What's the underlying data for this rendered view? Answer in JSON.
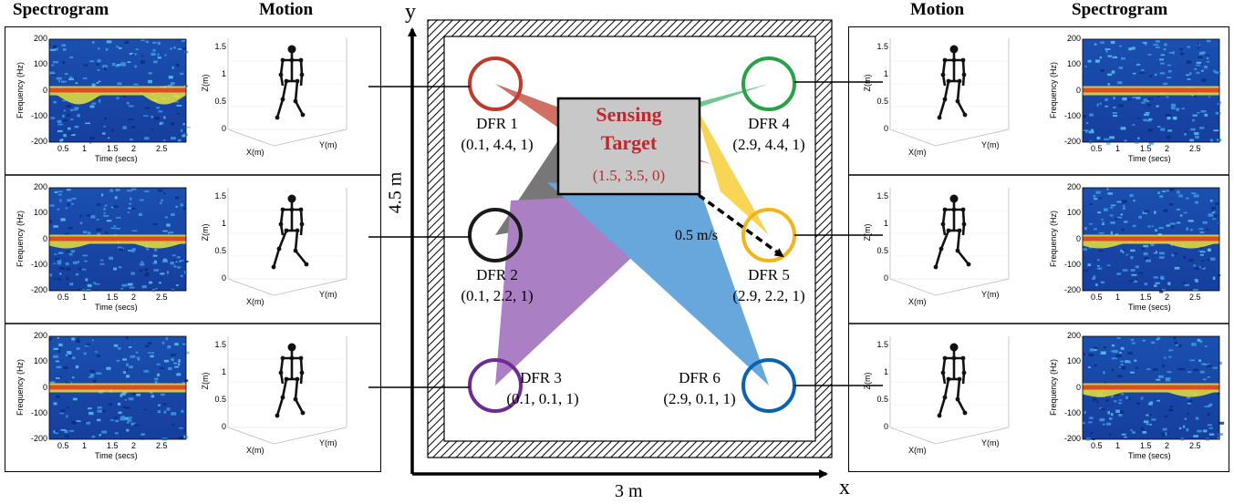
{
  "headers": {
    "left_spectrogram": "Spectrogram",
    "left_motion": "Motion",
    "right_motion": "Motion",
    "right_spectrogram": "Spectrogram"
  },
  "spectrogram_axes": {
    "ylabel": "Frequency (Hz)",
    "xlabel": "Time (secs)",
    "yticks": [
      "200",
      "100",
      "0",
      "-100",
      "-200"
    ],
    "xticks": [
      "0.5",
      "1",
      "1.5",
      "2",
      "2.5"
    ]
  },
  "motion_axes": {
    "zlabel": "Z(m)",
    "xlabel": "X(m)",
    "ylabel": "Y(m)",
    "zticks": [
      "1.5",
      "1",
      "0.5",
      "0"
    ]
  },
  "room": {
    "x_axis": "x",
    "y_axis": "y",
    "width_label": "3 m",
    "height_label": "4.5 m",
    "target_title_1": "Sensing",
    "target_title_2": "Target",
    "target_coords": "(1.5, 3.5, 0)",
    "velocity": "0.5 m/s"
  },
  "dfrs": [
    {
      "name": "DFR 1",
      "coords": "(0.1, 4.4, 1)",
      "color": "#c0392b"
    },
    {
      "name": "DFR 2",
      "coords": "(0.1, 2.2, 1)",
      "color": "#1a1a1a"
    },
    {
      "name": "DFR 3",
      "coords": "(0.1, 0.1, 1)",
      "color": "#6c2c91"
    },
    {
      "name": "DFR 4",
      "coords": "(2.9, 4.4, 1)",
      "color": "#27a345"
    },
    {
      "name": "DFR 5",
      "coords": "(2.9, 2.2, 1)",
      "color": "#f2b418"
    },
    {
      "name": "DFR 6",
      "coords": "(2.9, 0.1, 1)",
      "color": "#0b62ad"
    }
  ],
  "colors": {
    "target_text": "#c0282d",
    "target_fill": "#c8c8c8",
    "beam_red": "#c0392b",
    "beam_green": "#3bb36a",
    "beam_black": "#222222",
    "beam_yellow": "#f7c514",
    "beam_purple": "#8a4fae",
    "beam_blue": "#2f86cf"
  }
}
